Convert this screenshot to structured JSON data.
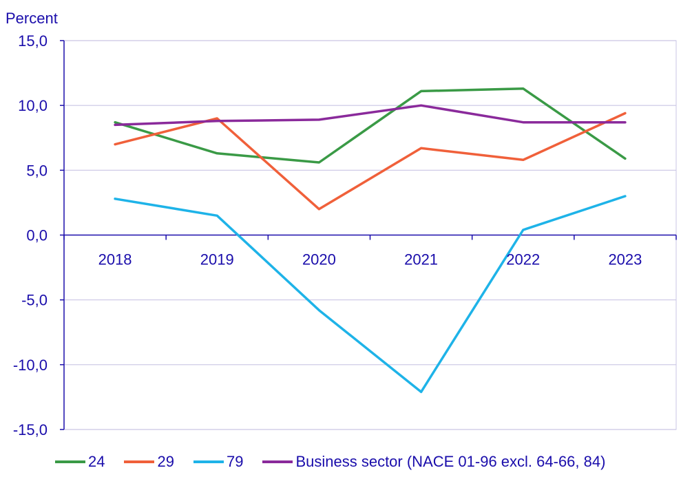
{
  "chart_data": {
    "type": "line",
    "ylabel": "Percent",
    "categories": [
      "2018",
      "2019",
      "2020",
      "2021",
      "2022",
      "2023"
    ],
    "ylim": [
      -15,
      15
    ],
    "yticks": [
      15,
      10,
      5,
      0,
      -5,
      -10,
      -15
    ],
    "ytick_labels": [
      "15,0",
      "10,0",
      "5,0",
      "0,0",
      "-5,0",
      "-10,0",
      "-15,0"
    ],
    "grid": true,
    "legend_position": "bottom",
    "series": [
      {
        "name": "24",
        "color": "#3a9a46",
        "values": [
          8.7,
          6.3,
          5.6,
          11.1,
          11.3,
          5.9
        ]
      },
      {
        "name": "29",
        "color": "#f0603a",
        "values": [
          7.0,
          9.0,
          2.0,
          6.7,
          5.8,
          9.4
        ]
      },
      {
        "name": "79",
        "color": "#1eb3e8",
        "values": [
          2.8,
          1.5,
          -5.8,
          -12.1,
          0.4,
          3.0
        ]
      },
      {
        "name": "Business sector (NACE 01-96 excl. 64-66, 84)",
        "color": "#8a2a9b",
        "values": [
          8.5,
          8.8,
          8.9,
          10.0,
          8.7,
          8.7
        ]
      }
    ]
  }
}
